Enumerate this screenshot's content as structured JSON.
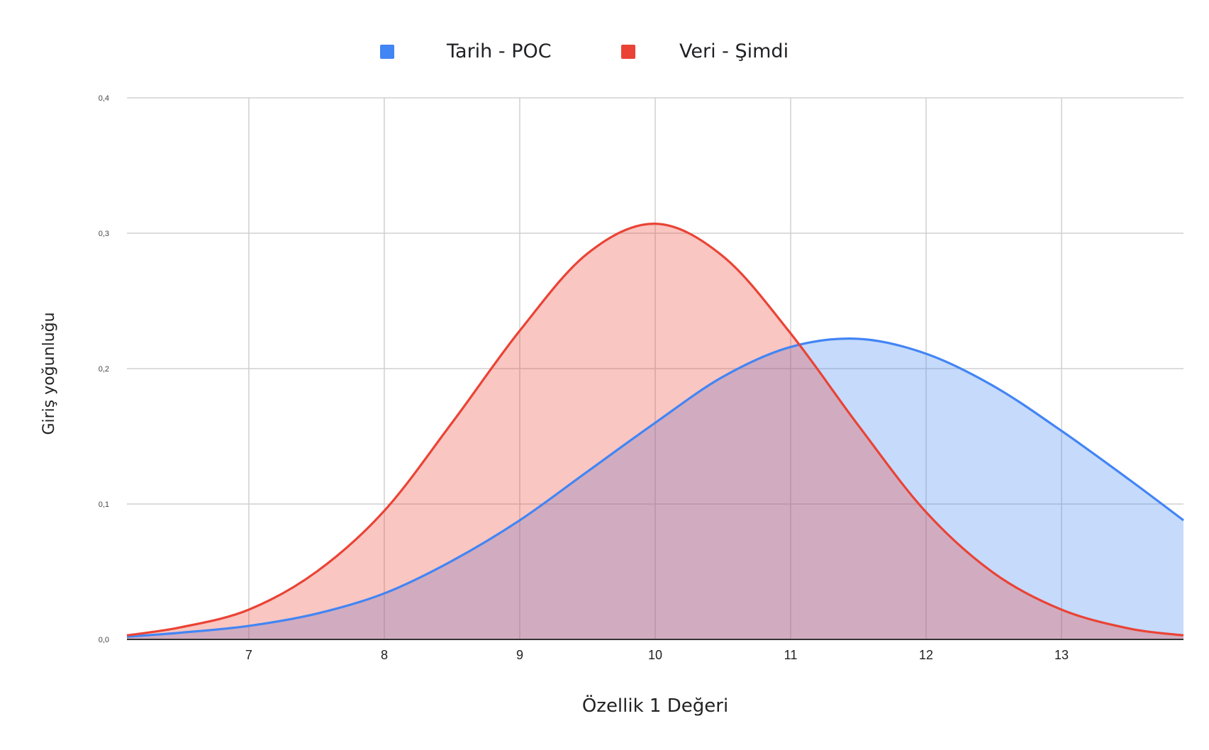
{
  "chart_data": {
    "type": "area",
    "xlabel": "Özellik 1 Değeri",
    "ylabel": "Giriş yoğunluğu",
    "xlim": [
      6.1,
      13.9
    ],
    "ylim": [
      0,
      0.4
    ],
    "x_ticks": [
      "7",
      "8",
      "9",
      "10",
      "11",
      "12",
      "13"
    ],
    "y_ticks": [
      "0,0",
      "0,1",
      "0,2",
      "0,3",
      "0,4"
    ],
    "grid": true,
    "legend_position": "top",
    "series": [
      {
        "name": "Tarih - POC",
        "color": "#4285f4",
        "fill": "#c5d9f8",
        "x": [
          6.1,
          6.5,
          7.0,
          7.5,
          8.0,
          8.5,
          9.0,
          9.5,
          10.0,
          10.5,
          11.0,
          11.5,
          12.0,
          12.5,
          13.0,
          13.5,
          13.9
        ],
        "values": [
          0.002,
          0.005,
          0.01,
          0.019,
          0.034,
          0.058,
          0.088,
          0.124,
          0.16,
          0.194,
          0.216,
          0.222,
          0.211,
          0.187,
          0.154,
          0.118,
          0.088
        ]
      },
      {
        "name": "Veri - Şimdi",
        "color": "#ea4335",
        "fill": "#f4a6a0",
        "x": [
          6.1,
          6.5,
          7.0,
          7.5,
          8.0,
          8.5,
          9.0,
          9.5,
          10.0,
          10.5,
          11.0,
          11.5,
          12.0,
          12.5,
          13.0,
          13.5,
          13.9
        ],
        "values": [
          0.003,
          0.009,
          0.022,
          0.05,
          0.095,
          0.16,
          0.228,
          0.285,
          0.307,
          0.283,
          0.226,
          0.158,
          0.094,
          0.049,
          0.022,
          0.008,
          0.003
        ]
      }
    ]
  }
}
